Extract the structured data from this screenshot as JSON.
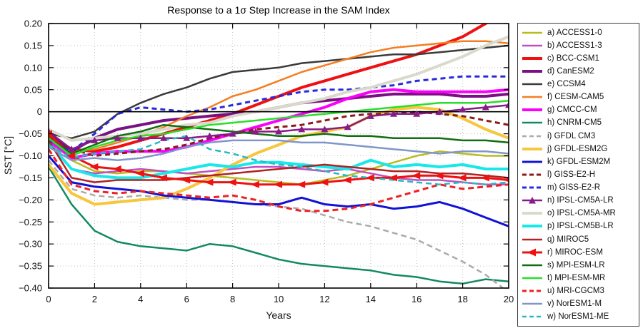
{
  "title": "Response to a 1σ Step Increase in the SAM Index",
  "axes": {
    "xlabel": "Years",
    "ylabel": "SST [°C]",
    "xlim": [
      0,
      20
    ],
    "ylim": [
      -0.4,
      0.2
    ],
    "xticks": [
      0,
      2,
      4,
      6,
      8,
      10,
      12,
      14,
      16,
      18,
      20
    ],
    "xtick_labels": [
      "0",
      "2",
      "4",
      "6",
      "8",
      "10",
      "12",
      "14",
      "16",
      "18",
      "20"
    ],
    "yticks": [
      0.2,
      0.15,
      0.1,
      0.05,
      0,
      -0.05,
      -0.1,
      -0.15,
      -0.2,
      -0.25,
      -0.3,
      -0.35,
      -0.4
    ],
    "ytick_labels": [
      "0.20",
      "0.15",
      "0.10",
      "0.05",
      "0",
      "−0.05",
      "−0.10",
      "−0.15",
      "−0.20",
      "−0.25",
      "−0.30",
      "−0.35",
      "−0.40"
    ],
    "grid": "dotted",
    "grid_color": "#c0c0c0",
    "zero_line": true,
    "frame_color": "#000000"
  },
  "chart_data": {
    "type": "line",
    "legend_position": "right",
    "x": [
      0,
      1,
      2,
      3,
      4,
      5,
      6,
      7,
      8,
      9,
      10,
      11,
      12,
      13,
      14,
      15,
      16,
      17,
      18,
      19,
      20
    ],
    "series": [
      {
        "key": "a",
        "label": "a) ACCESS1-0",
        "color": "#b8bc20",
        "width": 2.5,
        "dash": null,
        "marker": null,
        "values": [
          -0.06,
          -0.11,
          -0.135,
          -0.14,
          -0.135,
          -0.135,
          -0.14,
          -0.145,
          -0.15,
          -0.155,
          -0.16,
          -0.165,
          -0.155,
          -0.145,
          -0.13,
          -0.115,
          -0.1,
          -0.09,
          -0.095,
          -0.1,
          -0.1
        ]
      },
      {
        "key": "b",
        "label": "b) ACCESS1-3",
        "color": "#c04fc0",
        "width": 2.5,
        "dash": null,
        "marker": null,
        "values": [
          -0.065,
          -0.13,
          -0.14,
          -0.135,
          -0.13,
          -0.135,
          -0.14,
          -0.135,
          -0.13,
          -0.125,
          -0.125,
          -0.13,
          -0.135,
          -0.13,
          -0.14,
          -0.15,
          -0.155,
          -0.155,
          -0.16,
          -0.165,
          -0.165
        ]
      },
      {
        "key": "c",
        "label": "c) BCC-CSM1",
        "color": "#ee1111",
        "width": 4,
        "dash": null,
        "marker": null,
        "values": [
          -0.055,
          -0.085,
          -0.09,
          -0.08,
          -0.065,
          -0.05,
          -0.035,
          -0.02,
          -0.005,
          0.015,
          0.035,
          0.055,
          0.07,
          0.085,
          0.1,
          0.115,
          0.13,
          0.15,
          0.17,
          0.2,
          0.24
        ]
      },
      {
        "key": "d",
        "label": "d) CanESM2",
        "color": "#7a1082",
        "width": 4,
        "dash": null,
        "marker": null,
        "values": [
          -0.05,
          -0.09,
          -0.06,
          -0.04,
          -0.03,
          -0.02,
          -0.015,
          -0.01,
          -0.005,
          0.0,
          0.01,
          0.02,
          0.025,
          0.03,
          0.035,
          0.04,
          0.04,
          0.04,
          0.035,
          0.035,
          0.04
        ]
      },
      {
        "key": "e",
        "label": "e) CCSM4",
        "color": "#3a3a3a",
        "width": 2.5,
        "dash": null,
        "marker": null,
        "values": [
          -0.05,
          -0.06,
          -0.045,
          -0.005,
          0.02,
          0.04,
          0.055,
          0.075,
          0.09,
          0.095,
          0.1,
          0.11,
          0.115,
          0.12,
          0.125,
          0.13,
          0.13,
          0.135,
          0.14,
          0.145,
          0.15
        ]
      },
      {
        "key": "f",
        "label": "f) CESM-CAM5",
        "color": "#f57e20",
        "width": 2.5,
        "dash": null,
        "marker": null,
        "values": [
          -0.07,
          -0.09,
          -0.085,
          -0.07,
          -0.055,
          -0.035,
          -0.01,
          0.01,
          0.035,
          0.05,
          0.07,
          0.09,
          0.105,
          0.12,
          0.135,
          0.145,
          0.15,
          0.155,
          0.16,
          0.16,
          0.155
        ]
      },
      {
        "key": "g",
        "label": "g) CMCC-CM",
        "color": "#fb00fb",
        "width": 4,
        "dash": null,
        "marker": null,
        "values": [
          -0.065,
          -0.105,
          -0.095,
          -0.09,
          -0.09,
          -0.09,
          -0.08,
          -0.065,
          -0.05,
          -0.035,
          -0.02,
          -0.005,
          0.01,
          0.03,
          0.045,
          0.05,
          0.045,
          0.045,
          0.045,
          0.045,
          0.05
        ]
      },
      {
        "key": "h",
        "label": "h) CNRM-CM5",
        "color": "#128a60",
        "width": 2.5,
        "dash": null,
        "marker": null,
        "values": [
          -0.125,
          -0.21,
          -0.27,
          -0.295,
          -0.305,
          -0.31,
          -0.315,
          -0.3,
          -0.305,
          -0.32,
          -0.335,
          -0.345,
          -0.35,
          -0.355,
          -0.36,
          -0.37,
          -0.375,
          -0.385,
          -0.39,
          -0.38,
          -0.385
        ]
      },
      {
        "key": "i",
        "label": "i) GFDL CM3",
        "color": "#ababab",
        "width": 2.5,
        "dash": "8 5",
        "marker": null,
        "values": [
          -0.11,
          -0.175,
          -0.19,
          -0.195,
          -0.19,
          -0.195,
          -0.2,
          -0.2,
          -0.205,
          -0.21,
          -0.215,
          -0.22,
          -0.235,
          -0.25,
          -0.26,
          -0.275,
          -0.29,
          -0.315,
          -0.34,
          -0.37,
          -0.41
        ]
      },
      {
        "key": "j",
        "label": "j) GFDL-ESM2G",
        "color": "#f7c63e",
        "width": 4,
        "dash": null,
        "marker": null,
        "values": [
          -0.12,
          -0.185,
          -0.21,
          -0.205,
          -0.2,
          -0.195,
          -0.175,
          -0.15,
          -0.12,
          -0.095,
          -0.075,
          -0.055,
          -0.045,
          -0.035,
          -0.01,
          0.005,
          0.01,
          0.005,
          -0.015,
          -0.04,
          -0.06
        ]
      },
      {
        "key": "k",
        "label": "k) GFDL-ESM2M",
        "color": "#1212d6",
        "width": 3,
        "dash": null,
        "marker": null,
        "values": [
          -0.1,
          -0.16,
          -0.17,
          -0.175,
          -0.18,
          -0.19,
          -0.195,
          -0.2,
          -0.205,
          -0.21,
          -0.21,
          -0.195,
          -0.21,
          -0.215,
          -0.21,
          -0.22,
          -0.215,
          -0.205,
          -0.22,
          -0.24,
          -0.26
        ]
      },
      {
        "key": "l",
        "label": "l) GISS-E2-H",
        "color": "#8b1a1a",
        "width": 3,
        "dash": "7 5",
        "marker": null,
        "values": [
          -0.06,
          -0.085,
          -0.1,
          -0.095,
          -0.09,
          -0.085,
          -0.075,
          -0.06,
          -0.05,
          -0.04,
          -0.035,
          -0.03,
          -0.02,
          -0.01,
          -0.005,
          -0.005,
          0.0,
          -0.005,
          -0.01,
          -0.02,
          -0.03
        ]
      },
      {
        "key": "m",
        "label": "m) GISS-E2-R",
        "color": "#2929dd",
        "width": 3,
        "dash": "7 5",
        "marker": null,
        "values": [
          -0.065,
          -0.09,
          -0.05,
          -0.005,
          0.01,
          0.005,
          0.0,
          0.005,
          0.015,
          0.025,
          0.035,
          0.045,
          0.05,
          0.05,
          0.055,
          0.06,
          0.07,
          0.075,
          0.08,
          0.08,
          0.08
        ]
      },
      {
        "key": "n",
        "label": "n) IPSL-CM5A-LR",
        "color": "#871b87",
        "width": 2.5,
        "dash": null,
        "marker": "triangle-up",
        "values": [
          -0.045,
          -0.085,
          -0.065,
          -0.06,
          -0.06,
          -0.06,
          -0.06,
          -0.055,
          -0.05,
          -0.045,
          -0.045,
          -0.04,
          -0.04,
          -0.035,
          -0.01,
          -0.005,
          -0.005,
          0.0,
          0.005,
          0.01,
          0.015
        ]
      },
      {
        "key": "o",
        "label": "o) IPSL-CM5A-MR",
        "color": "#d9d9cc",
        "width": 4,
        "dash": null,
        "marker": null,
        "values": [
          -0.04,
          -0.065,
          -0.06,
          -0.055,
          -0.05,
          -0.04,
          -0.03,
          -0.025,
          -0.01,
          0.0,
          0.01,
          0.02,
          0.03,
          0.045,
          0.055,
          0.07,
          0.085,
          0.105,
          0.125,
          0.15,
          0.17
        ]
      },
      {
        "key": "p",
        "label": "p) IPSL-CM5B-LR",
        "color": "#18e8e8",
        "width": 4,
        "dash": null,
        "marker": null,
        "values": [
          -0.07,
          -0.13,
          -0.145,
          -0.15,
          -0.15,
          -0.14,
          -0.13,
          -0.12,
          -0.125,
          -0.115,
          -0.115,
          -0.12,
          -0.125,
          -0.13,
          -0.11,
          -0.125,
          -0.12,
          -0.125,
          -0.12,
          -0.13,
          -0.13
        ]
      },
      {
        "key": "q",
        "label": "q) MIROC5",
        "color": "#b22222",
        "width": 2.5,
        "dash": null,
        "marker": null,
        "values": [
          -0.065,
          -0.15,
          -0.16,
          -0.155,
          -0.155,
          -0.155,
          -0.15,
          -0.145,
          -0.14,
          -0.135,
          -0.13,
          -0.125,
          -0.12,
          -0.125,
          -0.13,
          -0.135,
          -0.135,
          -0.14,
          -0.14,
          -0.145,
          -0.15
        ]
      },
      {
        "key": "r",
        "label": "r) MIROC-ESM",
        "color": "#ee1111",
        "width": 3,
        "dash": null,
        "marker": "triangle-left",
        "values": [
          -0.05,
          -0.1,
          -0.125,
          -0.13,
          -0.14,
          -0.15,
          -0.155,
          -0.16,
          -0.16,
          -0.165,
          -0.165,
          -0.165,
          -0.16,
          -0.155,
          -0.15,
          -0.15,
          -0.145,
          -0.145,
          -0.15,
          -0.15,
          -0.155
        ]
      },
      {
        "key": "s",
        "label": "s) MPI-ESM-LR",
        "color": "#0f6e0f",
        "width": 2.5,
        "dash": null,
        "marker": null,
        "values": [
          -0.06,
          -0.095,
          -0.075,
          -0.055,
          -0.045,
          -0.03,
          -0.035,
          -0.04,
          -0.045,
          -0.05,
          -0.055,
          -0.055,
          -0.05,
          -0.055,
          -0.055,
          -0.06,
          -0.06,
          -0.06,
          -0.065,
          -0.065,
          -0.07
        ]
      },
      {
        "key": "t",
        "label": "t) MPI-ESM-MR",
        "color": "#28df28",
        "width": 2.5,
        "dash": null,
        "marker": null,
        "values": [
          -0.06,
          -0.1,
          -0.08,
          -0.065,
          -0.055,
          -0.05,
          -0.04,
          -0.03,
          -0.025,
          -0.02,
          -0.015,
          -0.01,
          -0.005,
          0.0,
          0.005,
          0.01,
          0.015,
          0.02,
          0.02,
          0.02,
          0.025
        ]
      },
      {
        "key": "u",
        "label": "u) MRI-CGCM3",
        "color": "#ee2222",
        "width": 3,
        "dash": "8 5",
        "marker": null,
        "values": [
          -0.085,
          -0.165,
          -0.18,
          -0.185,
          -0.18,
          -0.185,
          -0.19,
          -0.195,
          -0.19,
          -0.2,
          -0.215,
          -0.225,
          -0.225,
          -0.22,
          -0.21,
          -0.195,
          -0.18,
          -0.165,
          -0.175,
          -0.17,
          -0.165
        ]
      },
      {
        "key": "v",
        "label": "v) NorESM1-M",
        "color": "#8096cb",
        "width": 2.5,
        "dash": null,
        "marker": null,
        "values": [
          -0.08,
          -0.11,
          -0.105,
          -0.11,
          -0.105,
          -0.095,
          -0.08,
          -0.07,
          -0.065,
          -0.065,
          -0.065,
          -0.07,
          -0.07,
          -0.075,
          -0.08,
          -0.085,
          -0.09,
          -0.095,
          -0.09,
          -0.09,
          -0.095
        ]
      },
      {
        "key": "w",
        "label": "w) NorESM1-ME",
        "color": "#28b8c4",
        "width": 2.5,
        "dash": "8 5",
        "marker": null,
        "values": [
          -0.075,
          -0.105,
          -0.095,
          -0.09,
          -0.085,
          -0.065,
          -0.055,
          -0.085,
          -0.095,
          -0.11,
          -0.12,
          -0.125,
          -0.135,
          -0.145,
          -0.15,
          -0.155,
          -0.16,
          -0.165,
          -0.16,
          -0.165,
          -0.16
        ]
      }
    ]
  }
}
